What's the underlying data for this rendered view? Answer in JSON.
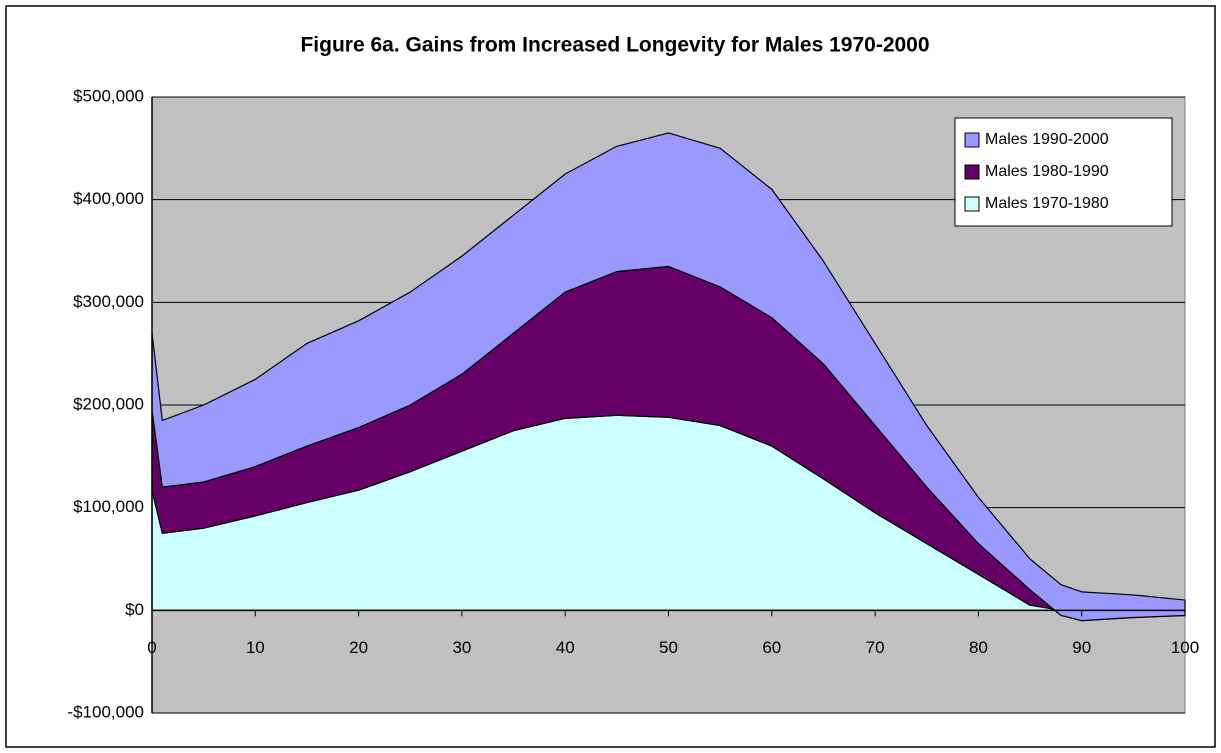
{
  "chart_data": {
    "type": "stacked-area",
    "title": "Figure 6a. Gains from Increased Longevity for Males 1970-2000",
    "x": [
      0,
      1,
      5,
      10,
      15,
      20,
      25,
      30,
      35,
      40,
      45,
      50,
      55,
      60,
      65,
      70,
      75,
      80,
      85,
      88,
      90,
      95,
      100
    ],
    "series": [
      {
        "name": "Males 1970-1980",
        "color": "#ccffff",
        "values": [
          117000,
          75000,
          80000,
          92000,
          105000,
          117000,
          135000,
          155000,
          175000,
          187000,
          190000,
          188000,
          180000,
          160000,
          128000,
          95000,
          65000,
          35000,
          5000,
          0,
          0,
          0,
          0
        ]
      },
      {
        "name": "Males 1980-1990",
        "color": "#660066",
        "values": [
          78000,
          45000,
          45000,
          48000,
          55000,
          61000,
          65000,
          75000,
          95000,
          123000,
          140000,
          147000,
          135000,
          125000,
          112000,
          85000,
          55000,
          30000,
          15000,
          -5000,
          -10000,
          -7000,
          -5000
        ]
      },
      {
        "name": "Males 1990-2000",
        "color": "#9999ff",
        "values": [
          75000,
          65000,
          75000,
          85000,
          100000,
          104000,
          110000,
          115000,
          115000,
          115000,
          122000,
          130000,
          135000,
          125000,
          100000,
          80000,
          60000,
          45000,
          30000,
          30000,
          28000,
          22000,
          15000
        ]
      }
    ],
    "xlim": [
      0,
      100
    ],
    "xticks": [
      0,
      10,
      20,
      30,
      40,
      50,
      60,
      70,
      80,
      90,
      100
    ],
    "ylim": [
      -100000,
      500000
    ],
    "yticks": [
      {
        "value": -100000,
        "label": "-$100,000"
      },
      {
        "value": 0,
        "label": "$0"
      },
      {
        "value": 100000,
        "label": "$100,000"
      },
      {
        "value": 200000,
        "label": "$200,000"
      },
      {
        "value": 300000,
        "label": "$300,000"
      },
      {
        "value": 400000,
        "label": "$400,000"
      },
      {
        "value": 500000,
        "label": "$500,000"
      }
    ],
    "grid": true,
    "legend": "top-right"
  }
}
